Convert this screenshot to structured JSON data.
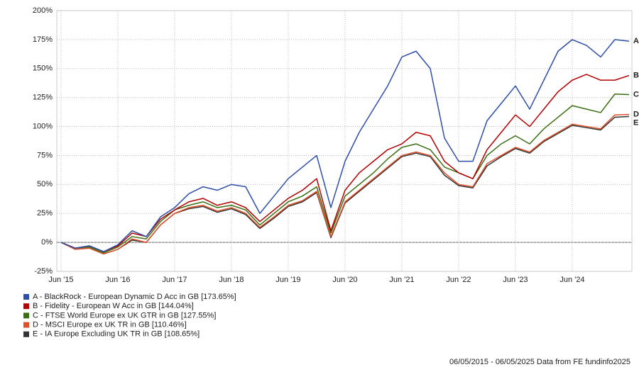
{
  "chart_data": {
    "type": "line",
    "categories": [
      "Jun '15",
      null,
      null,
      null,
      "Jun '16",
      null,
      null,
      null,
      "Jun '17",
      null,
      null,
      null,
      "Jun '18",
      null,
      null,
      null,
      "Jun '19",
      null,
      null,
      null,
      "Jun '20",
      null,
      null,
      null,
      "Jun '21",
      null,
      null,
      null,
      "Jun '22",
      null,
      null,
      null,
      "Jun '23",
      null,
      null,
      null,
      "Jun '24",
      null,
      null,
      null,
      null
    ],
    "ylim": [
      -25,
      200
    ],
    "yticks": [
      {
        "value": -25,
        "label": "-25%"
      },
      {
        "value": 0,
        "label": "0%"
      },
      {
        "value": 25,
        "label": "25%"
      },
      {
        "value": 50,
        "label": "50%"
      },
      {
        "value": 75,
        "label": "75%"
      },
      {
        "value": 100,
        "label": "100%"
      },
      {
        "value": 125,
        "label": "125%"
      },
      {
        "value": 150,
        "label": "150%"
      },
      {
        "value": 175,
        "label": "175%"
      },
      {
        "value": 200,
        "label": "200%"
      }
    ],
    "grid": true,
    "series": [
      {
        "name": "A - BlackRock - European Dynamic D Acc in GB [173.65%]",
        "end_label": "A",
        "color": "#2e4fa8",
        "values": [
          0,
          -5,
          -3,
          -8,
          -2,
          10,
          5,
          22,
          30,
          42,
          48,
          45,
          50,
          48,
          25,
          40,
          55,
          65,
          75,
          30,
          70,
          95,
          115,
          135,
          160,
          165,
          150,
          90,
          70,
          70,
          105,
          120,
          135,
          115,
          140,
          165,
          175,
          170,
          160,
          175,
          173.65
        ]
      },
      {
        "name": "B - Fidelity - European W Acc in GB [144.04%]",
        "end_label": "B",
        "color": "#b30000",
        "values": [
          0,
          -5,
          -3,
          -8,
          -3,
          8,
          5,
          20,
          28,
          35,
          38,
          32,
          35,
          30,
          18,
          28,
          38,
          45,
          55,
          10,
          45,
          60,
          70,
          80,
          85,
          95,
          92,
          70,
          60,
          55,
          80,
          95,
          110,
          100,
          115,
          130,
          140,
          145,
          140,
          140,
          144.04
        ]
      },
      {
        "name": "C - FTSE World Europe ex UK GTR in GB [127.55%]",
        "end_label": "C",
        "color": "#3a6e12",
        "values": [
          0,
          -5,
          -4,
          -9,
          -4,
          5,
          3,
          18,
          28,
          32,
          35,
          30,
          32,
          28,
          15,
          25,
          35,
          40,
          48,
          8,
          40,
          50,
          60,
          72,
          82,
          85,
          80,
          65,
          60,
          55,
          75,
          85,
          92,
          85,
          98,
          108,
          118,
          115,
          112,
          128,
          127.55
        ]
      },
      {
        "name": "D - MSCI Europe ex UK TR in GB [110.46%]",
        "end_label": "D",
        "color": "#e0512b",
        "values": [
          0,
          -6,
          -5,
          -10,
          -6,
          3,
          0,
          15,
          25,
          30,
          32,
          27,
          30,
          25,
          13,
          22,
          32,
          36,
          44,
          5,
          35,
          45,
          55,
          65,
          75,
          78,
          75,
          60,
          50,
          48,
          68,
          75,
          82,
          78,
          88,
          95,
          102,
          100,
          98,
          110,
          110.46
        ]
      },
      {
        "name": "E - IA Europe Excluding UK TR in GB [108.65%]",
        "end_label": "E",
        "color": "#333333",
        "values": [
          0,
          -6,
          -5,
          -10,
          -6,
          2,
          0,
          15,
          25,
          29,
          31,
          26,
          29,
          24,
          12,
          21,
          31,
          35,
          43,
          4,
          34,
          44,
          54,
          64,
          74,
          77,
          74,
          58,
          49,
          47,
          66,
          74,
          81,
          77,
          87,
          94,
          101,
          99,
          97,
          108,
          108.65
        ]
      }
    ],
    "footer": "06/05/2015 - 06/05/2025 Data from FE fundinfo2025"
  }
}
